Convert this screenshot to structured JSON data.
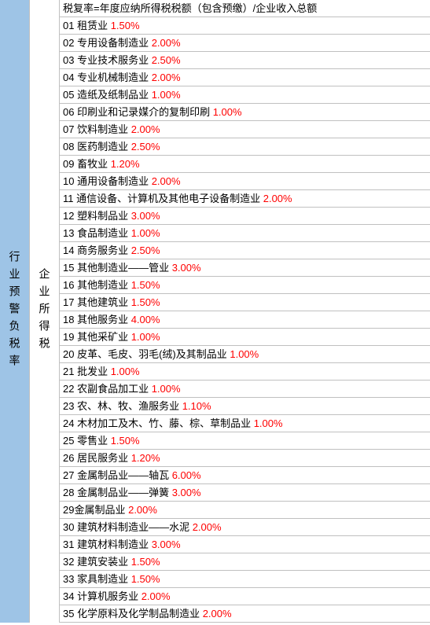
{
  "col1_label": "行业预警负税率",
  "col2_label": "企业所得税",
  "formula": "税复率=年度应纳所得税税额（包含预缴）/企业收入总额",
  "rows": [
    {
      "num": "01",
      "name": "租赁业",
      "rate": "1.50%"
    },
    {
      "num": "02",
      "name": "专用设备制造业",
      "rate": "2.00%"
    },
    {
      "num": "03",
      "name": "专业技术服务业",
      "rate": "2.50%"
    },
    {
      "num": "04",
      "name": "专业机械制造业",
      "rate": "2.00%"
    },
    {
      "num": "05",
      "name": "造纸及纸制品业",
      "rate": "1.00%"
    },
    {
      "num": "06",
      "name": "印刷业和记录媒介的复制印刷",
      "rate": "1.00%"
    },
    {
      "num": "07",
      "name": "饮料制造业",
      "rate": "2.00%"
    },
    {
      "num": "08",
      "name": "医药制造业",
      "rate": "2.50%"
    },
    {
      "num": "09",
      "name": "畜牧业",
      "rate": "1.20%"
    },
    {
      "num": "10",
      "name": "通用设备制造业",
      "rate": "2.00%"
    },
    {
      "num": "11",
      "name": "通信设备、计算机及其他电子设备制造业",
      "rate": "2.00%"
    },
    {
      "num": "12",
      "name": "塑料制品业",
      "rate": "3.00%"
    },
    {
      "num": "13",
      "name": "食品制造业",
      "rate": "1.00%"
    },
    {
      "num": "14",
      "name": "商务服务业",
      "rate": "2.50%"
    },
    {
      "num": "15",
      "name": "其他制造业——管业",
      "rate": "3.00%"
    },
    {
      "num": "16",
      "name": "其他制造业",
      "rate": "1.50%"
    },
    {
      "num": "17",
      "name": "其他建筑业",
      "rate": "1.50%"
    },
    {
      "num": "18",
      "name": "其他服务业",
      "rate": "4.00%"
    },
    {
      "num": "19",
      "name": "其他采矿业",
      "rate": "1.00%"
    },
    {
      "num": "20",
      "name": "皮革、毛皮、羽毛(绒)及其制品业",
      "rate": "1.00%"
    },
    {
      "num": "21",
      "name": "批发业",
      "rate": "1.00%"
    },
    {
      "num": "22",
      "name": "农副食品加工业",
      "rate": "1.00%"
    },
    {
      "num": "23",
      "name": "农、林、牧、渔服务业",
      "rate": "1.10%"
    },
    {
      "num": "24",
      "name": "木材加工及木、竹、藤、棕、草制品业",
      "rate": "1.00%"
    },
    {
      "num": "25",
      "name": "零售业",
      "rate": "1.50%"
    },
    {
      "num": "26",
      "name": "居民服务业",
      "rate": "1.20%"
    },
    {
      "num": "27",
      "name": "金属制品业——轴瓦",
      "rate": "6.00%"
    },
    {
      "num": "28",
      "name": "金属制品业——弹簧",
      "rate": "3.00%"
    },
    {
      "num": "29",
      "name": "金属制品业",
      "rate": "2.00%",
      "nospace": true
    },
    {
      "num": "30",
      "name": "建筑材料制造业——水泥",
      "rate": "2.00%"
    },
    {
      "num": "31",
      "name": "建筑材料制造业",
      "rate": "3.00%"
    },
    {
      "num": "32",
      "name": "建筑安装业",
      "rate": "1.50%"
    },
    {
      "num": "33",
      "name": "家具制造业",
      "rate": "1.50%"
    },
    {
      "num": "34",
      "name": "计算机服务业",
      "rate": "2.00%"
    },
    {
      "num": "35",
      "name": "化学原料及化学制品制造业",
      "rate": "2.00%"
    }
  ],
  "colors": {
    "col1_bg": "#9ec4e6",
    "rate_color": "#ff0000",
    "text_color": "#000000",
    "border_color": "#c0c0c0",
    "bg": "#ffffff"
  },
  "font_size": 13
}
